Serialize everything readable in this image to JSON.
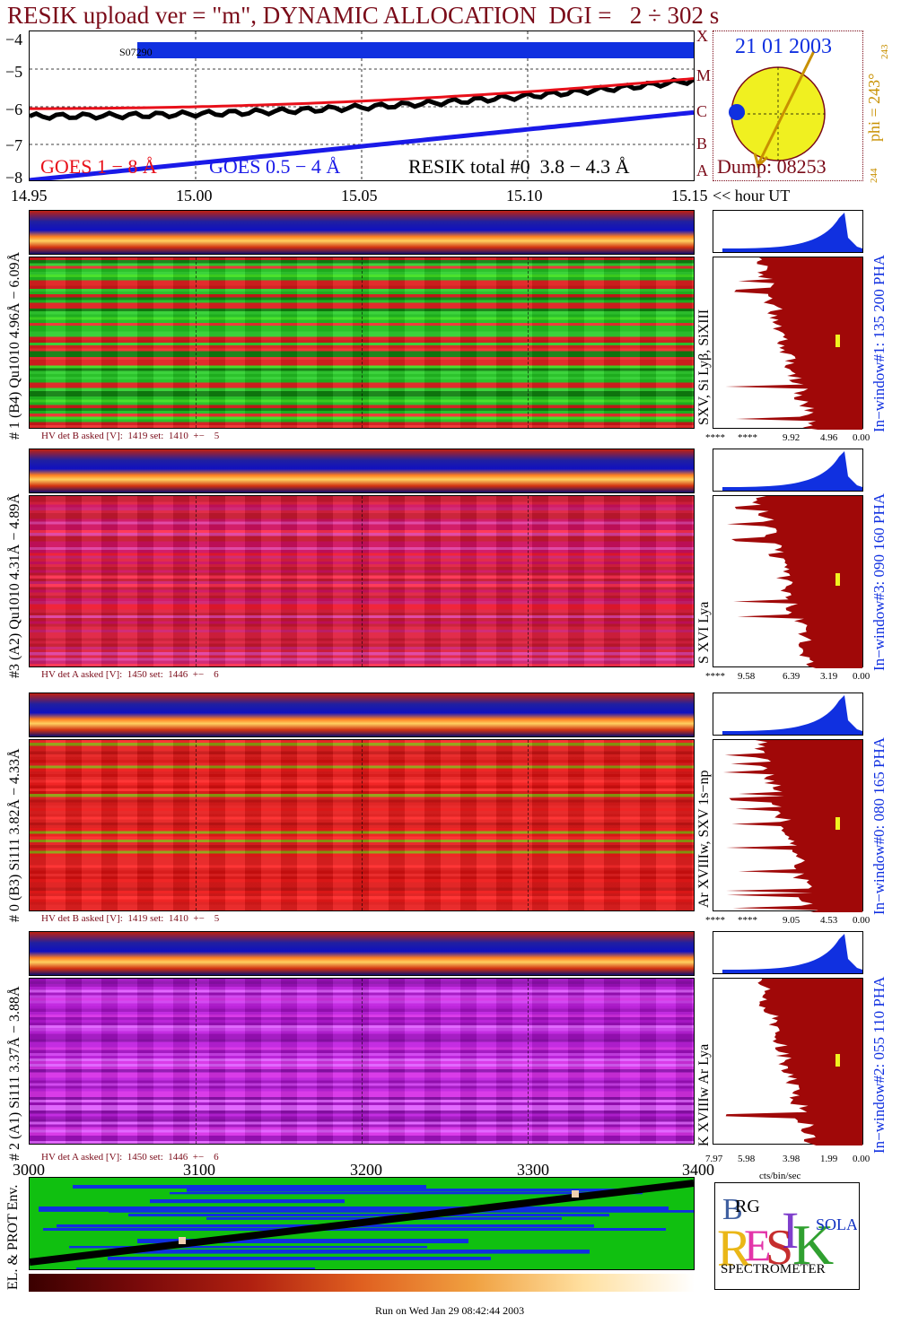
{
  "header": {
    "title": "RESIK upload ver = \"m\", DYNAMIC ALLOCATION  DGI =   2 ÷ 302 s"
  },
  "goes": {
    "y_ticks": [
      "−4",
      "−5",
      "−6",
      "−7",
      "−8"
    ],
    "class_letters": [
      "X",
      "M",
      "C",
      "B",
      "A"
    ],
    "x_ticks": [
      "14.95",
      "15.00",
      "15.05",
      "15.10",
      "15.15"
    ],
    "x_unit": "<< hour UT",
    "legend_red": "GOES 1 − 8 Å",
    "legend_blue": "GOES 0.5 − 4 Å",
    "legend_black": "RESIK total #0  3.8 − 4.3 Å",
    "segment_label": "S07290",
    "colors": {
      "goes_long": "#e8101a",
      "goes_short": "#1a1ae8",
      "resik": "#000000",
      "bar": "#1030e0"
    }
  },
  "sun": {
    "date": "21 01 2003",
    "dump": "Dump: 08253",
    "phi": "phi = 243°",
    "phi_small": "243",
    "phi_bottom": "244",
    "colors": {
      "disk": "#f0f020",
      "marker": "#1030e0",
      "arrow": "#c89000"
    }
  },
  "panels": [
    {
      "ylabel": "# 1 (B4) Qu1010 4.96Å − 6.09Å",
      "line_label": "SXV, Si Lyβ, SiXIII",
      "hv": "HV det B asked [V]:  1419 set:  1410  +−    5",
      "window": "In−window#1:  135 200 PHA",
      "axis": [
        "****",
        "****",
        "9.92",
        "4.96",
        "0.00"
      ],
      "palette": "green"
    },
    {
      "ylabel": "#3 (A2) Qu1010  4.31Å − 4.89Å",
      "line_label": "S XVI Lya",
      "hv": "HV det A asked [V]:  1450 set:  1446  +−    6",
      "window": "In−window#3:  090 160 PHA",
      "axis": [
        "****",
        "9.58",
        "6.39",
        "3.19",
        "0.00"
      ],
      "palette": "red"
    },
    {
      "ylabel": "# 0 (B3) Si111  3.82Å − 4.33Å",
      "line_label": "Ar XVIIIw, SXV 1s−np",
      "hv": "HV det B asked [V]:  1419 set:  1410  +−    5",
      "window": "In−window#0:  080 165 PHA",
      "axis": [
        "****",
        "****",
        "9.05",
        "4.53",
        "0.00"
      ],
      "palette": "red2"
    },
    {
      "ylabel": "# 2 (A1) Si111  3.37Å − 3.88Å",
      "line_label": "K XVIIIw  Ar Lya",
      "hv": "HV det A asked [V]:  1450 set:  1446  +−    6",
      "window": "In−window#2:  055 110 PHA",
      "axis": [
        "7.97",
        "5.98",
        "3.98",
        "1.99",
        "0.00"
      ],
      "palette": "magenta"
    }
  ],
  "spectrum_unit": "cts/bin/sec",
  "bottom": {
    "ylabel": "EL. & PROT Env.",
    "x_ticks": [
      "3000",
      "3100",
      "3200",
      "3300",
      "3400"
    ]
  },
  "logo": {
    "letters": [
      "B",
      "R",
      "G",
      "E",
      "S",
      "I",
      "K",
      "S",
      "O",
      "L",
      "A",
      "R"
    ],
    "caption": "SPECTROMETER"
  },
  "footer": {
    "run": "Run on Wed Jan 29 08:42:44 2003"
  }
}
